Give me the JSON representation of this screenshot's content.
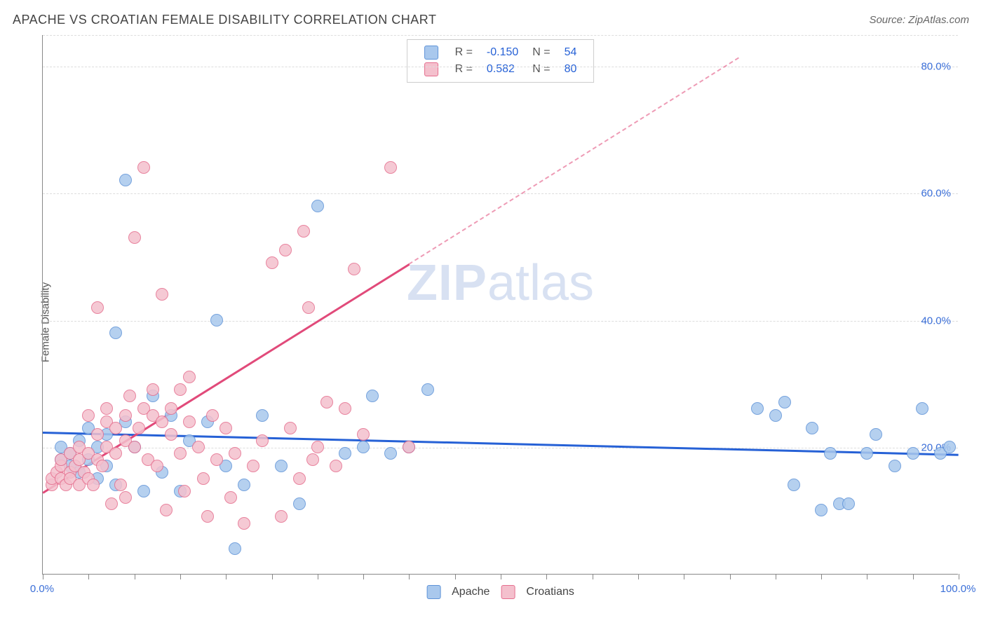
{
  "title": "APACHE VS CROATIAN FEMALE DISABILITY CORRELATION CHART",
  "source": "Source: ZipAtlas.com",
  "watermark": {
    "part1": "ZIP",
    "part2": "atlas"
  },
  "chart": {
    "type": "scatter",
    "y_axis_label": "Female Disability",
    "background_color": "#ffffff",
    "grid_color": "#dddddd",
    "axis_color": "#888888",
    "label_color": "#3b6fd8",
    "xlim": [
      0,
      100
    ],
    "ylim": [
      0,
      85
    ],
    "y_ticks": [
      20,
      40,
      60,
      80
    ],
    "y_tick_labels": [
      "20.0%",
      "40.0%",
      "60.0%",
      "80.0%"
    ],
    "x_minor_ticks": [
      0,
      5,
      10,
      15,
      20,
      25,
      30,
      35,
      40,
      45,
      50,
      55,
      60,
      65,
      70,
      75,
      80,
      85,
      90,
      95,
      100
    ],
    "x_tick_labels": [
      {
        "pos": 0,
        "label": "0.0%"
      },
      {
        "pos": 100,
        "label": "100.0%"
      }
    ],
    "series": [
      {
        "name": "Apache",
        "fill_color": "#a9c8ed",
        "stroke_color": "#5f93d8",
        "marker_size": 18,
        "regression": {
          "x1": 0,
          "y1": 22.5,
          "x2": 100,
          "y2": 19.0,
          "color": "#2661d6",
          "width": 3,
          "style": "solid"
        },
        "R": "-0.150",
        "N": "54",
        "points": [
          [
            2,
            18
          ],
          [
            2,
            20
          ],
          [
            3,
            19
          ],
          [
            3,
            17
          ],
          [
            4,
            16
          ],
          [
            4,
            21
          ],
          [
            5,
            18
          ],
          [
            5,
            23
          ],
          [
            6,
            15
          ],
          [
            6,
            20
          ],
          [
            7,
            22
          ],
          [
            7,
            17
          ],
          [
            8,
            14
          ],
          [
            8,
            38
          ],
          [
            9,
            62
          ],
          [
            9,
            24
          ],
          [
            10,
            20
          ],
          [
            11,
            13
          ],
          [
            12,
            28
          ],
          [
            13,
            16
          ],
          [
            14,
            25
          ],
          [
            15,
            13
          ],
          [
            16,
            21
          ],
          [
            18,
            24
          ],
          [
            19,
            40
          ],
          [
            20,
            17
          ],
          [
            21,
            4
          ],
          [
            22,
            14
          ],
          [
            24,
            25
          ],
          [
            26,
            17
          ],
          [
            28,
            11
          ],
          [
            30,
            58
          ],
          [
            33,
            19
          ],
          [
            35,
            20
          ],
          [
            36,
            28
          ],
          [
            38,
            19
          ],
          [
            40,
            20
          ],
          [
            42,
            29
          ],
          [
            78,
            26
          ],
          [
            80,
            25
          ],
          [
            81,
            27
          ],
          [
            82,
            14
          ],
          [
            84,
            23
          ],
          [
            85,
            10
          ],
          [
            86,
            19
          ],
          [
            87,
            11
          ],
          [
            88,
            11
          ],
          [
            90,
            19
          ],
          [
            91,
            22
          ],
          [
            93,
            17
          ],
          [
            95,
            19
          ],
          [
            96,
            26
          ],
          [
            98,
            19
          ],
          [
            99,
            20
          ]
        ]
      },
      {
        "name": "Croatians",
        "fill_color": "#f4c0cd",
        "stroke_color": "#e56e8e",
        "marker_size": 18,
        "regression": {
          "x1": 0,
          "y1": 13,
          "x2": 40,
          "y2": 49,
          "dash_x2": 76,
          "dash_y2": 81.5,
          "color": "#e14a7a",
          "width": 2.5,
          "style": "solid-then-dashed"
        },
        "R": "0.582",
        "N": "80",
        "points": [
          [
            1,
            14
          ],
          [
            1,
            15
          ],
          [
            1.5,
            16
          ],
          [
            2,
            15
          ],
          [
            2,
            17
          ],
          [
            2,
            18
          ],
          [
            2.5,
            14
          ],
          [
            3,
            16
          ],
          [
            3,
            15
          ],
          [
            3,
            19
          ],
          [
            3.5,
            17
          ],
          [
            4,
            14
          ],
          [
            4,
            18
          ],
          [
            4,
            20
          ],
          [
            4.5,
            16
          ],
          [
            5,
            15
          ],
          [
            5,
            19
          ],
          [
            5,
            25
          ],
          [
            5.5,
            14
          ],
          [
            6,
            22
          ],
          [
            6,
            18
          ],
          [
            6,
            42
          ],
          [
            6.5,
            17
          ],
          [
            7,
            20
          ],
          [
            7,
            24
          ],
          [
            7,
            26
          ],
          [
            7.5,
            11
          ],
          [
            8,
            19
          ],
          [
            8,
            23
          ],
          [
            8.5,
            14
          ],
          [
            9,
            21
          ],
          [
            9,
            25
          ],
          [
            9,
            12
          ],
          [
            9.5,
            28
          ],
          [
            10,
            20
          ],
          [
            10,
            53
          ],
          [
            10.5,
            23
          ],
          [
            11,
            26
          ],
          [
            11,
            64
          ],
          [
            11.5,
            18
          ],
          [
            12,
            25
          ],
          [
            12,
            29
          ],
          [
            12.5,
            17
          ],
          [
            13,
            24
          ],
          [
            13,
            44
          ],
          [
            13.5,
            10
          ],
          [
            14,
            22
          ],
          [
            14,
            26
          ],
          [
            15,
            19
          ],
          [
            15,
            29
          ],
          [
            15.5,
            13
          ],
          [
            16,
            24
          ],
          [
            16,
            31
          ],
          [
            17,
            20
          ],
          [
            17.5,
            15
          ],
          [
            18,
            9
          ],
          [
            18.5,
            25
          ],
          [
            19,
            18
          ],
          [
            20,
            23
          ],
          [
            20.5,
            12
          ],
          [
            21,
            19
          ],
          [
            22,
            8
          ],
          [
            23,
            17
          ],
          [
            24,
            21
          ],
          [
            25,
            49
          ],
          [
            26,
            9
          ],
          [
            26.5,
            51
          ],
          [
            27,
            23
          ],
          [
            28,
            15
          ],
          [
            28.5,
            54
          ],
          [
            29,
            42
          ],
          [
            29.5,
            18
          ],
          [
            30,
            20
          ],
          [
            31,
            27
          ],
          [
            32,
            17
          ],
          [
            33,
            26
          ],
          [
            34,
            48
          ],
          [
            35,
            22
          ],
          [
            38,
            64
          ],
          [
            40,
            20
          ]
        ]
      }
    ],
    "legend_top": {
      "r_label": "R =",
      "n_label": "N ="
    },
    "legend_bottom": {
      "items": [
        "Apache",
        "Croatians"
      ]
    }
  }
}
